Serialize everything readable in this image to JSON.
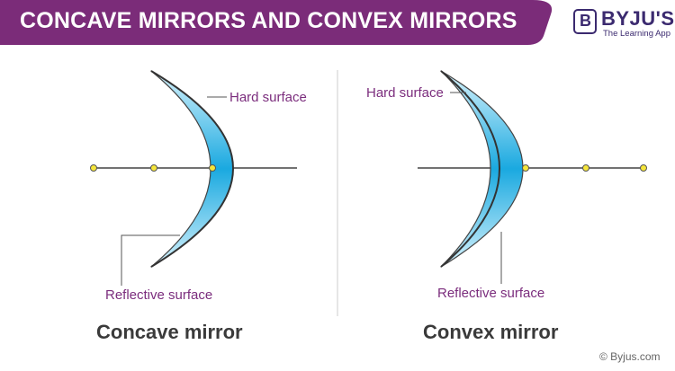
{
  "banner": {
    "title": "CONCAVE MIRRORS AND CONVEX MIRRORS",
    "color": "#7b2c79"
  },
  "logo": {
    "name": "BYJU'S",
    "letter": "B",
    "tagline": "The Learning App",
    "color": "#3b2a6f"
  },
  "left_diagram": {
    "hard_label": "Hard surface",
    "reflective_label": "Reflective surface",
    "caption": "Concave mirror"
  },
  "right_diagram": {
    "hard_label": "Hard surface",
    "reflective_label": "Reflective surface",
    "caption": "Convex mirror"
  },
  "colors": {
    "mirror_light": "#cfeffb",
    "mirror_dark": "#1aa9e0",
    "label": "#7b2d7d",
    "point": "#f5e53a"
  },
  "copyright": "© Byjus.com"
}
